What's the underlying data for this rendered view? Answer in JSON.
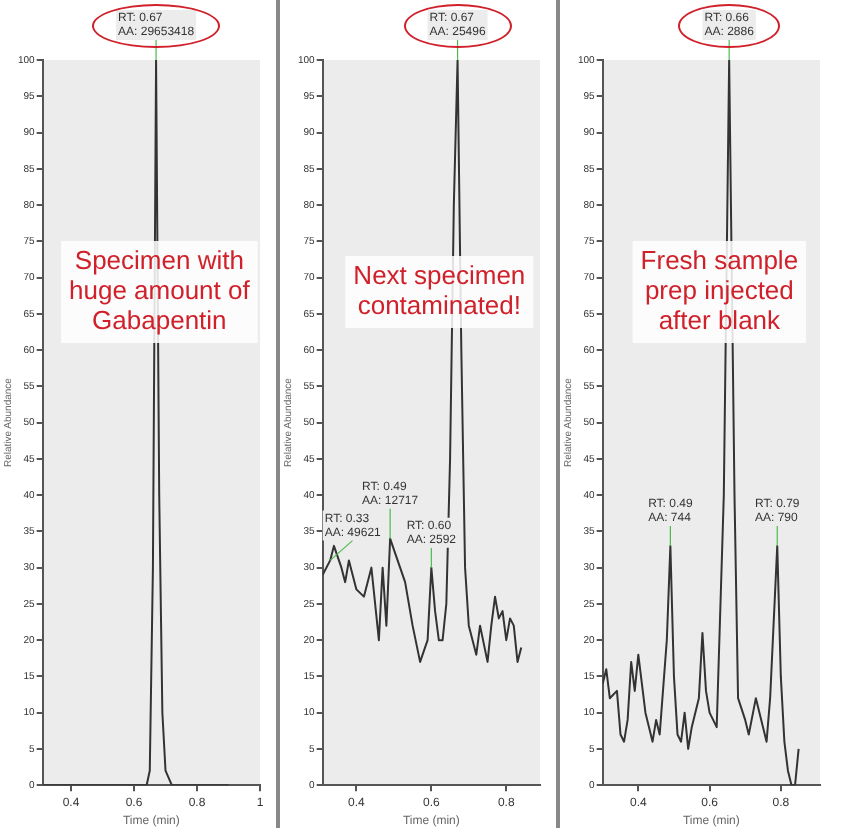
{
  "chart_data": [
    {
      "type": "line",
      "xlabel": "Time (min)",
      "ylabel": "Relative Abundance",
      "xlim": [
        0.31,
        1.0
      ],
      "xticks": [
        0.4,
        0.6,
        0.8,
        1
      ],
      "ylim": [
        0,
        100
      ],
      "yticks": [
        0,
        5,
        10,
        15,
        20,
        25,
        30,
        35,
        40,
        45,
        50,
        55,
        60,
        65,
        70,
        75,
        80,
        85,
        90,
        95,
        100
      ],
      "grid": false,
      "legend": false,
      "marker": "none",
      "x": [
        0.31,
        0.4,
        0.5,
        0.6,
        0.64,
        0.65,
        0.66,
        0.67,
        0.68,
        0.69,
        0.7,
        0.72,
        0.8,
        0.9
      ],
      "series": [
        {
          "color": "#333333",
          "values": [
            0,
            0,
            0,
            0,
            0,
            2,
            30,
            100,
            40,
            10,
            2,
            0,
            0,
            0
          ]
        }
      ],
      "annotations": [
        {
          "text": "RT: 0.67\nAA: 29653418",
          "x": 0.67,
          "y": 100
        },
        "Specimen with\nhuge amount of\nGabapentin"
      ]
    },
    {
      "type": "line",
      "xlabel": "Time (min)",
      "ylabel": "Relative Abundance",
      "xlim": [
        0.31,
        0.89
      ],
      "xticks": [
        0.4,
        0.6,
        0.8
      ],
      "ylim": [
        0,
        100
      ],
      "yticks": [
        0,
        5,
        10,
        15,
        20,
        25,
        30,
        35,
        40,
        45,
        50,
        55,
        60,
        65,
        70,
        75,
        80,
        85,
        90,
        95,
        100
      ],
      "grid": false,
      "legend": false,
      "marker": "none",
      "x": [
        0.31,
        0.33,
        0.34,
        0.36,
        0.37,
        0.38,
        0.4,
        0.42,
        0.44,
        0.46,
        0.47,
        0.48,
        0.49,
        0.51,
        0.53,
        0.55,
        0.57,
        0.59,
        0.6,
        0.61,
        0.62,
        0.63,
        0.64,
        0.65,
        0.66,
        0.67,
        0.68,
        0.69,
        0.7,
        0.72,
        0.73,
        0.75,
        0.76,
        0.77,
        0.78,
        0.79,
        0.8,
        0.81,
        0.82,
        0.83,
        0.84
      ],
      "series": [
        {
          "color": "#333333",
          "values": [
            29,
            31,
            33,
            30,
            28,
            31,
            27,
            26,
            30,
            20,
            30,
            22,
            34,
            31,
            28,
            22,
            17,
            20,
            30,
            24,
            20,
            20,
            25,
            45,
            80,
            100,
            60,
            30,
            22,
            18,
            22,
            17,
            22,
            26,
            23,
            24,
            20,
            23,
            22,
            17,
            19
          ]
        }
      ],
      "annotations": [
        {
          "text": "RT: 0.67\nAA: 25496",
          "x": 0.67,
          "y": 100
        },
        {
          "text": "RT: 0.33\nAA: 49621",
          "x": 0.33,
          "y": 31
        },
        {
          "text": "RT: 0.49\nAA: 12717",
          "x": 0.49,
          "y": 34
        },
        {
          "text": "RT: 0.60\nAA: 2592",
          "x": 0.6,
          "y": 30
        },
        "Next specimen\ncontaminated!"
      ]
    },
    {
      "type": "line",
      "xlabel": "Time (min)",
      "ylabel": "Relative Abundance",
      "xlim": [
        0.3,
        0.91
      ],
      "xticks": [
        0.4,
        0.6,
        0.8
      ],
      "ylim": [
        0,
        100
      ],
      "yticks": [
        0,
        5,
        10,
        15,
        20,
        25,
        30,
        35,
        40,
        45,
        50,
        55,
        60,
        65,
        70,
        75,
        80,
        85,
        90,
        95,
        100
      ],
      "grid": false,
      "legend": false,
      "marker": "none",
      "x": [
        0.3,
        0.31,
        0.32,
        0.34,
        0.35,
        0.36,
        0.37,
        0.38,
        0.39,
        0.4,
        0.42,
        0.43,
        0.44,
        0.45,
        0.46,
        0.48,
        0.49,
        0.5,
        0.51,
        0.52,
        0.53,
        0.54,
        0.55,
        0.57,
        0.58,
        0.59,
        0.6,
        0.62,
        0.64,
        0.655,
        0.67,
        0.68,
        0.7,
        0.71,
        0.73,
        0.74,
        0.76,
        0.77,
        0.79,
        0.8,
        0.81,
        0.82,
        0.83,
        0.84,
        0.85
      ],
      "series": [
        {
          "color": "#333333",
          "values": [
            14,
            16,
            12,
            13,
            7,
            6,
            9,
            17,
            13,
            18,
            10,
            8,
            6,
            9,
            7,
            20,
            33,
            15,
            7,
            6,
            10,
            5,
            8,
            12,
            21,
            13,
            10,
            8,
            40,
            100,
            40,
            12,
            9,
            7,
            12,
            10,
            6,
            12,
            33,
            15,
            6,
            2,
            0,
            0,
            5
          ]
        }
      ],
      "annotations": [
        {
          "text": "RT: 0.66\nAA: 2886",
          "x": 0.655,
          "y": 100
        },
        {
          "text": "RT: 0.49\nAA: 744",
          "x": 0.49,
          "y": 33
        },
        {
          "text": "RT: 0.79\nAA: 790",
          "x": 0.79,
          "y": 33
        },
        "Fresh sample\nprep injected\nafter blank"
      ]
    }
  ]
}
